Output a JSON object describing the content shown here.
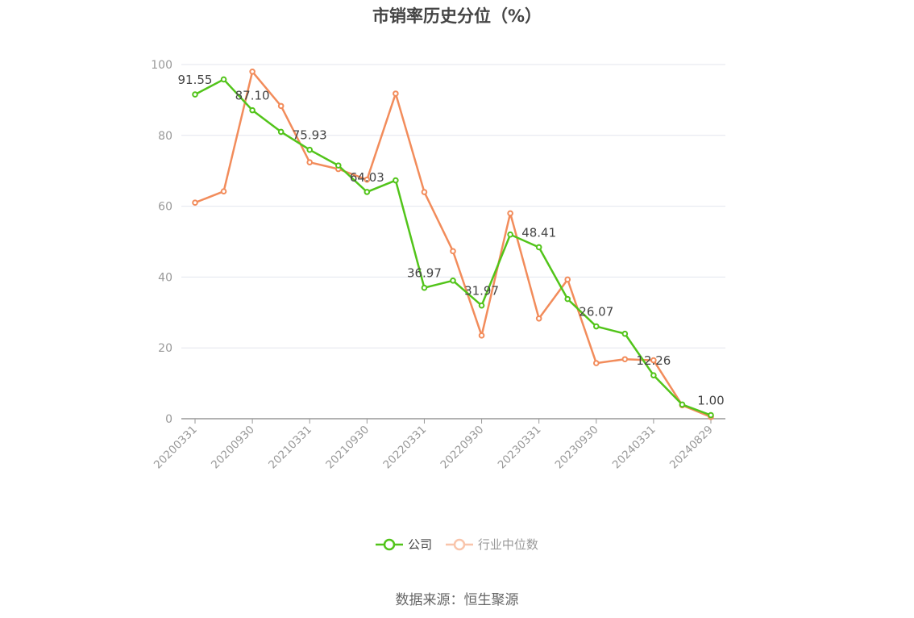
{
  "chart_data": {
    "type": "line",
    "title": "市销率历史分位（%）",
    "xlabel": "",
    "ylabel": "",
    "ylim": [
      0,
      100
    ],
    "yticks": [
      0,
      20,
      40,
      60,
      80,
      100
    ],
    "grid": true,
    "legend_position": "bottom",
    "x": [
      "20200331",
      "20200630",
      "20200930",
      "20201231",
      "20210331",
      "20210630",
      "20210930",
      "20211231",
      "20220331",
      "20220630",
      "20220930",
      "20221231",
      "20230331",
      "20230630",
      "20230930",
      "20231231",
      "20240331",
      "20240630",
      "20240829"
    ],
    "x_tick_labels": [
      "20200331",
      "20200930",
      "20210331",
      "20210930",
      "20220331",
      "20220930",
      "20230331",
      "20230930",
      "20240331",
      "20240829"
    ],
    "series": [
      {
        "name": "公司",
        "color": "#52c41a",
        "values": [
          91.55,
          95.8,
          87.1,
          81.0,
          75.93,
          71.5,
          64.03,
          67.3,
          36.97,
          39.0,
          31.97,
          52.0,
          48.41,
          33.8,
          26.07,
          24.0,
          12.26,
          4.0,
          1.0
        ],
        "labels": {
          "0": "91.55",
          "2": "87.10",
          "4": "75.93",
          "6": "64.03",
          "8": "36.97",
          "10": "31.97",
          "12": "48.41",
          "14": "26.07",
          "16": "12.26",
          "18": "1.00"
        }
      },
      {
        "name": "行业中位数",
        "color": "#f28c5b",
        "values": [
          61.0,
          64.2,
          98.0,
          88.3,
          72.4,
          70.5,
          67.5,
          91.8,
          64.0,
          47.3,
          23.5,
          58.0,
          28.3,
          39.3,
          15.7,
          16.8,
          16.5,
          3.8,
          0.5
        ]
      }
    ]
  },
  "legend": {
    "company": "公司",
    "industry": "行业中位数"
  },
  "source": "数据来源：恒生聚源"
}
